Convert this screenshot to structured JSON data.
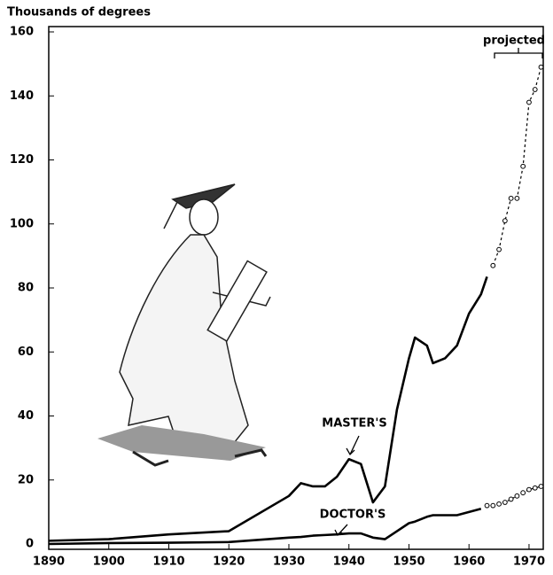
{
  "chart_data": {
    "type": "line",
    "y_label": "Thousands of degrees",
    "annotation": "projected",
    "x": [
      1890,
      1900,
      1910,
      1920,
      1930,
      1932,
      1934,
      1936,
      1938,
      1940,
      1942,
      1944,
      1946,
      1948,
      1950,
      1951,
      1953,
      1954,
      1956,
      1958,
      1960,
      1962,
      1963,
      1964,
      1965,
      1966,
      1967,
      1968,
      1969,
      1970,
      1971,
      1972
    ],
    "series": [
      {
        "name": "MASTER'S",
        "color": "#000000",
        "values": [
          1,
          1.5,
          3,
          4,
          15,
          19,
          18,
          18,
          21,
          26.5,
          25,
          13,
          18,
          42,
          58,
          64.5,
          62,
          56.5,
          58,
          62,
          72,
          78,
          83.5,
          null,
          null,
          null,
          null,
          null,
          null,
          null,
          null,
          null
        ],
        "projected_values": [
          null,
          null,
          null,
          null,
          null,
          null,
          null,
          null,
          null,
          null,
          null,
          null,
          null,
          null,
          null,
          null,
          null,
          null,
          null,
          null,
          null,
          null,
          null,
          87,
          92,
          101,
          108,
          108,
          118,
          138,
          142,
          149
        ]
      },
      {
        "name": "DOCTOR'S",
        "color": "#000000",
        "values": [
          0,
          0.3,
          0.4,
          0.6,
          2,
          2.2,
          2.6,
          2.8,
          3,
          3.3,
          3.3,
          2,
          1.5,
          4,
          6.5,
          7,
          8.5,
          9,
          9,
          9,
          10,
          11,
          null,
          null,
          null,
          null,
          null,
          null,
          null,
          null,
          null,
          null
        ],
        "projected_values": [
          null,
          null,
          null,
          null,
          null,
          null,
          null,
          null,
          null,
          null,
          null,
          null,
          null,
          null,
          null,
          null,
          null,
          null,
          null,
          null,
          null,
          null,
          12,
          12,
          12.5,
          13,
          14,
          15,
          16,
          17,
          17.5,
          18
        ]
      }
    ],
    "xlim": [
      1890,
      1972
    ],
    "ylim": [
      0,
      160
    ],
    "xticks": [
      1890,
      1900,
      1910,
      1920,
      1930,
      1940,
      1950,
      1960,
      1970
    ],
    "yticks": [
      0,
      20,
      40,
      60,
      80,
      100,
      120,
      140,
      160
    ],
    "grid": false
  }
}
